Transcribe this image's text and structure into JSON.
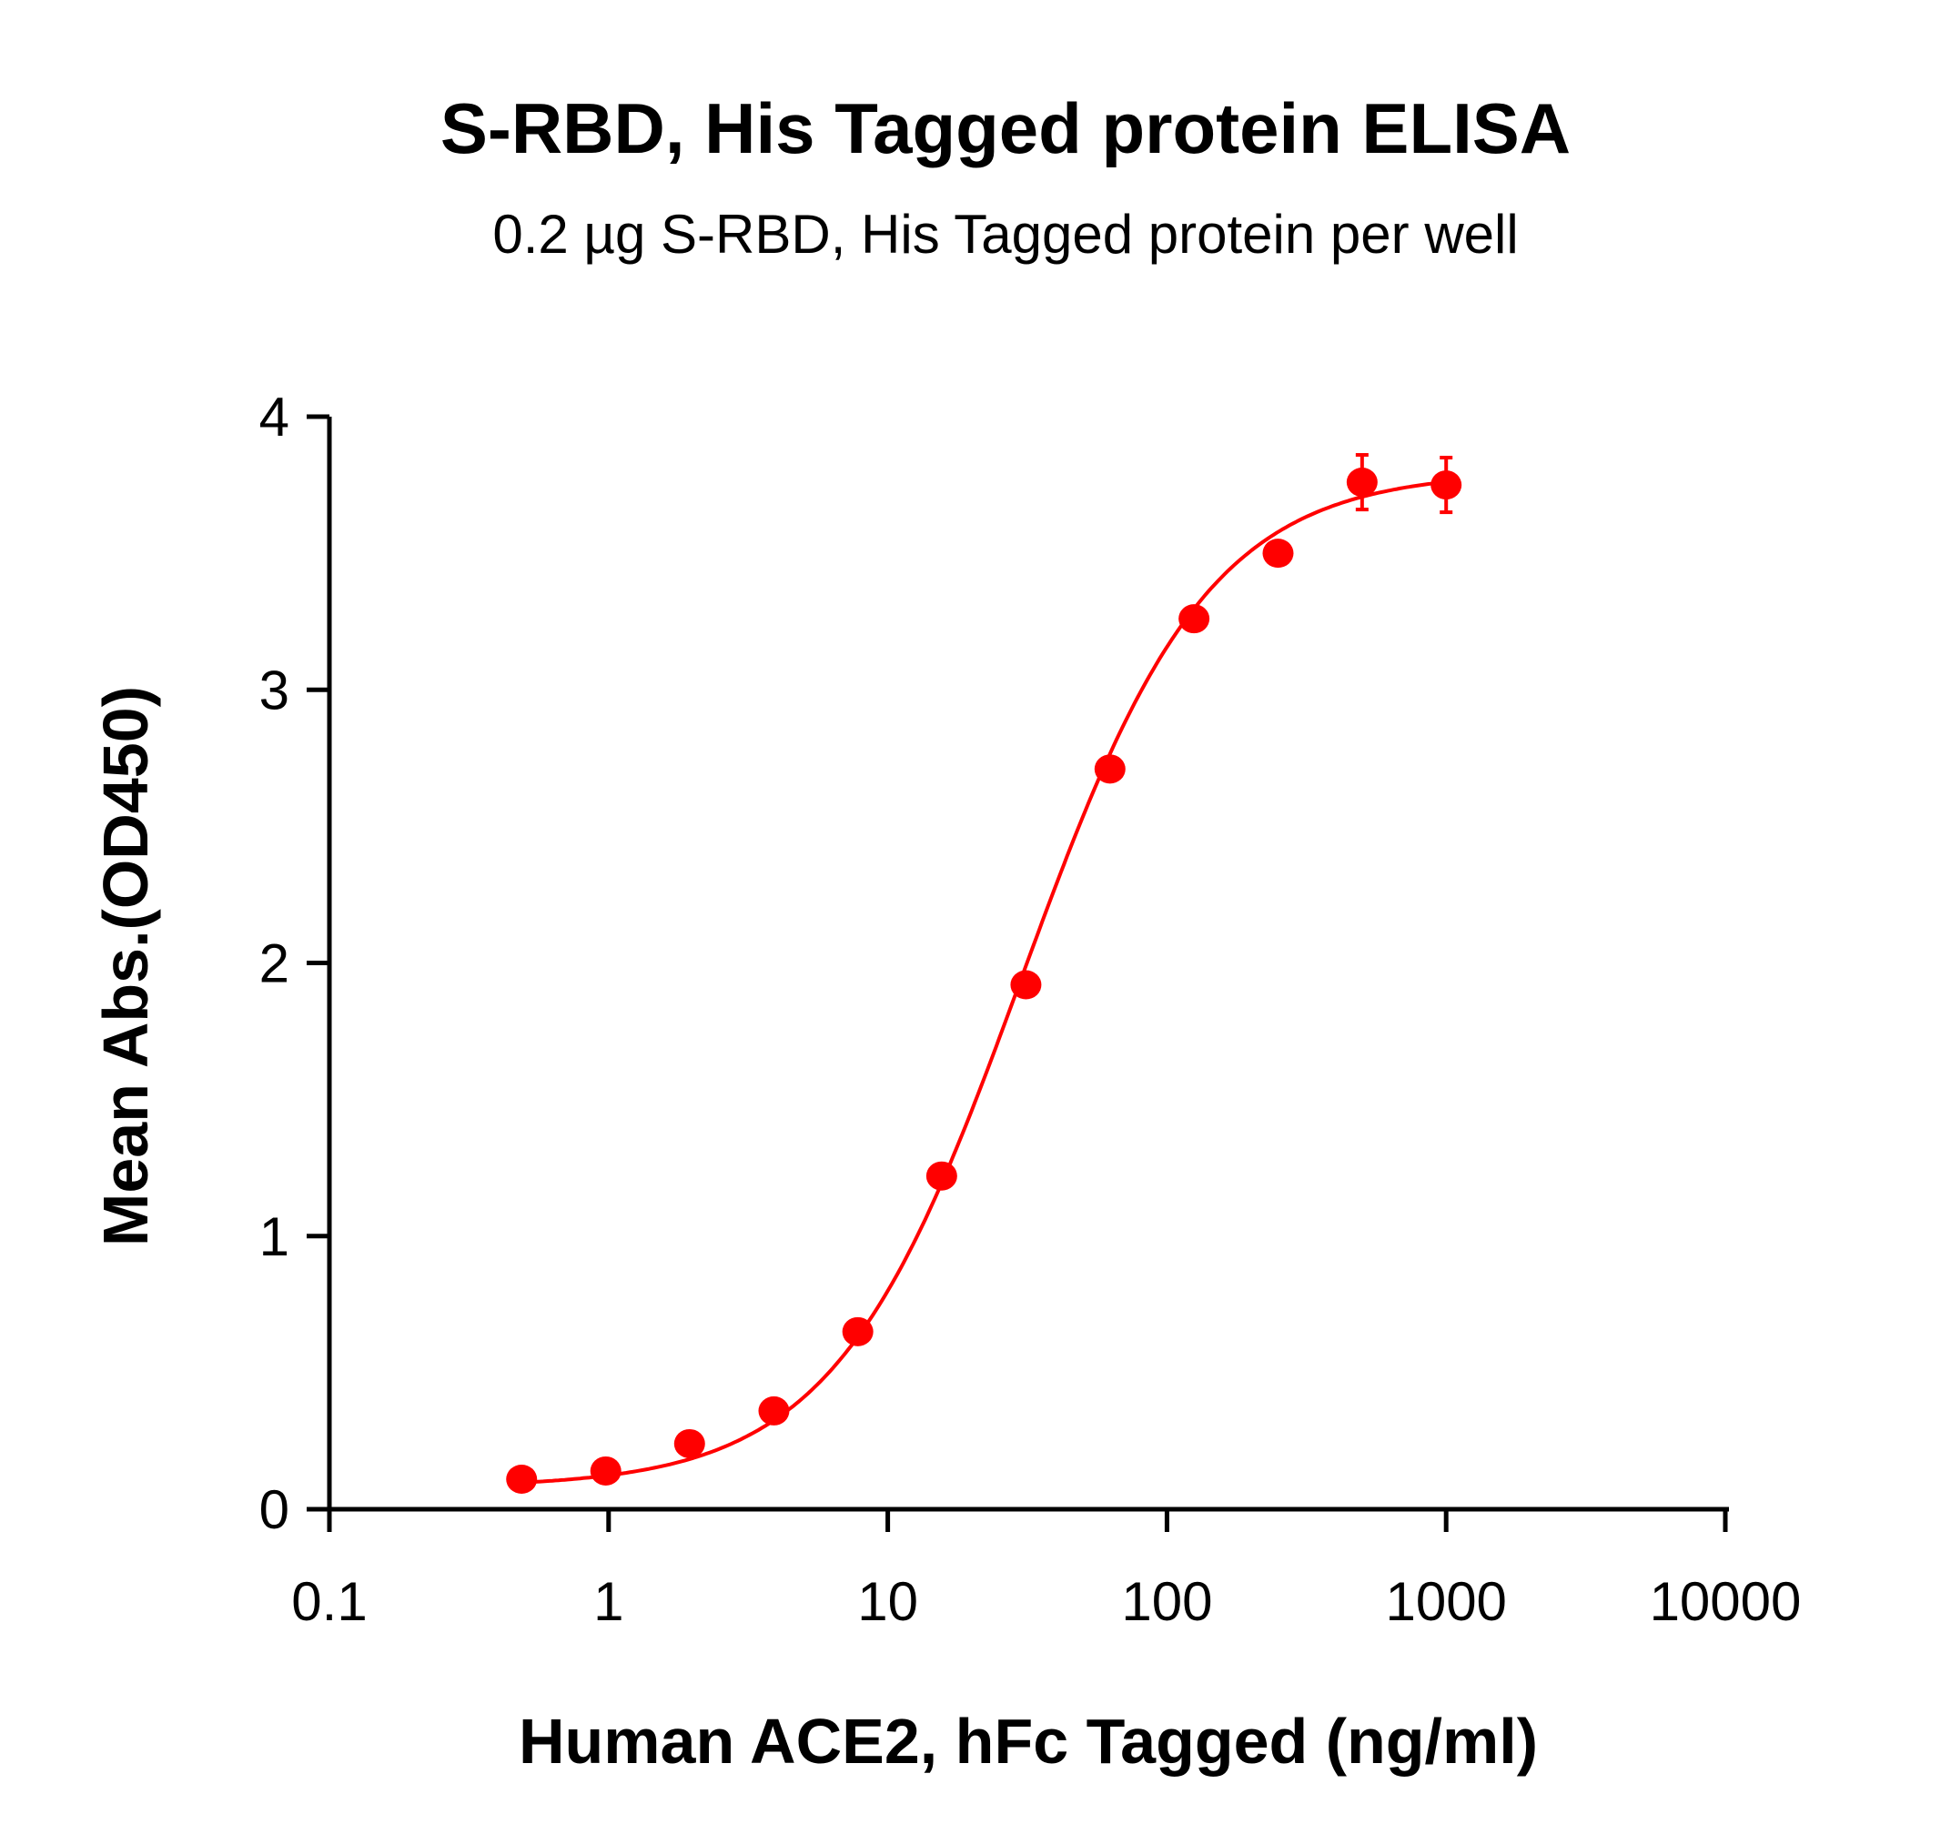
{
  "chart_data": {
    "type": "scatter",
    "title": "S-RBD, His Tagged protein ELISA",
    "subtitle": "0.2 µg S-RBD, His Tagged protein per well",
    "xlabel": "Human ACE2, hFc Tagged (ng/ml)",
    "ylabel": "Mean Abs.(OD450)",
    "x_scale": "log",
    "xlim": [
      0.1,
      10000
    ],
    "ylim": [
      0,
      4
    ],
    "x_ticks": [
      "0.1",
      "1",
      "10",
      "100",
      "1000",
      "10000"
    ],
    "y_ticks": [
      "0",
      "1",
      "2",
      "3",
      "4"
    ],
    "grid": false,
    "color": "#ff0000",
    "series": [
      {
        "x": [
          0.488,
          0.977,
          1.95,
          3.91,
          7.81,
          15.6,
          31.25,
          62.5,
          125,
          250,
          500,
          1000
        ],
        "y": [
          0.11,
          0.14,
          0.24,
          0.36,
          0.65,
          1.22,
          1.92,
          2.71,
          3.26,
          3.5,
          3.76,
          3.75
        ],
        "error": [
          0.01,
          0.01,
          0.01,
          0.01,
          0.01,
          0.01,
          0.01,
          0.01,
          0.01,
          0.01,
          0.1,
          0.1
        ]
      }
    ],
    "fit": {
      "model": "4PL",
      "bottom": 0.08,
      "top": 3.8,
      "ec50": 30,
      "hill": 1.3
    }
  }
}
